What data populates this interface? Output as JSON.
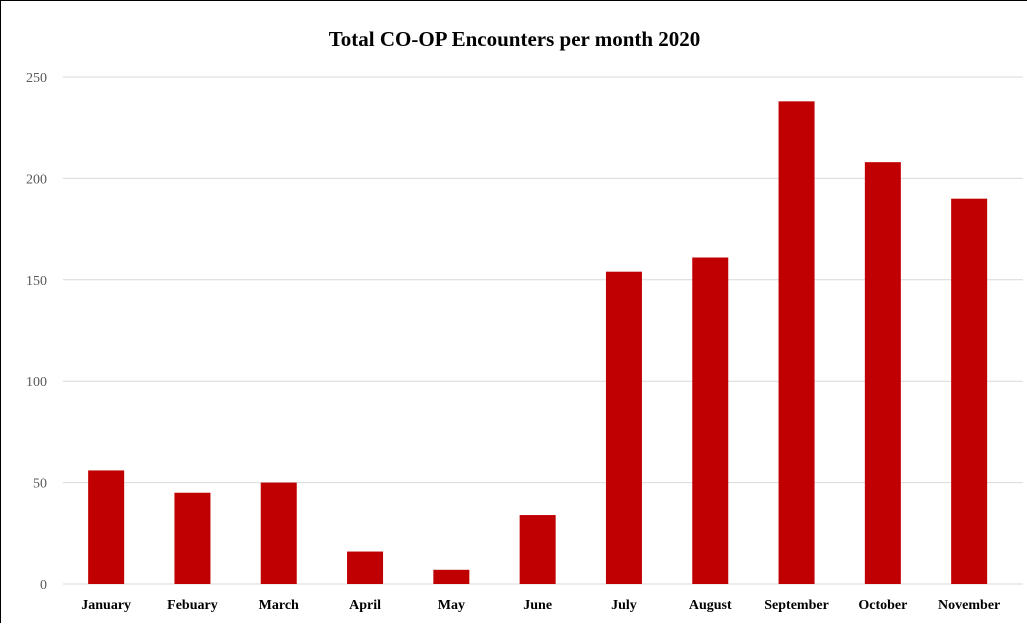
{
  "chart_data": {
    "type": "bar",
    "title": "Total CO-OP Encounters per month 2020",
    "xlabel": "",
    "ylabel": "",
    "categories": [
      "January",
      "Febuary",
      "March",
      "April",
      "May",
      "June",
      "July",
      "August",
      "September",
      "October",
      "November"
    ],
    "values": [
      56,
      45,
      50,
      16,
      7,
      34,
      154,
      161,
      238,
      208,
      190
    ],
    "ylim": [
      0,
      250
    ],
    "yticks": [
      0,
      50,
      100,
      150,
      200,
      250
    ],
    "grid": true,
    "legend": "none",
    "bar_color": "#C00000",
    "grid_color": "#D9D9D9"
  }
}
